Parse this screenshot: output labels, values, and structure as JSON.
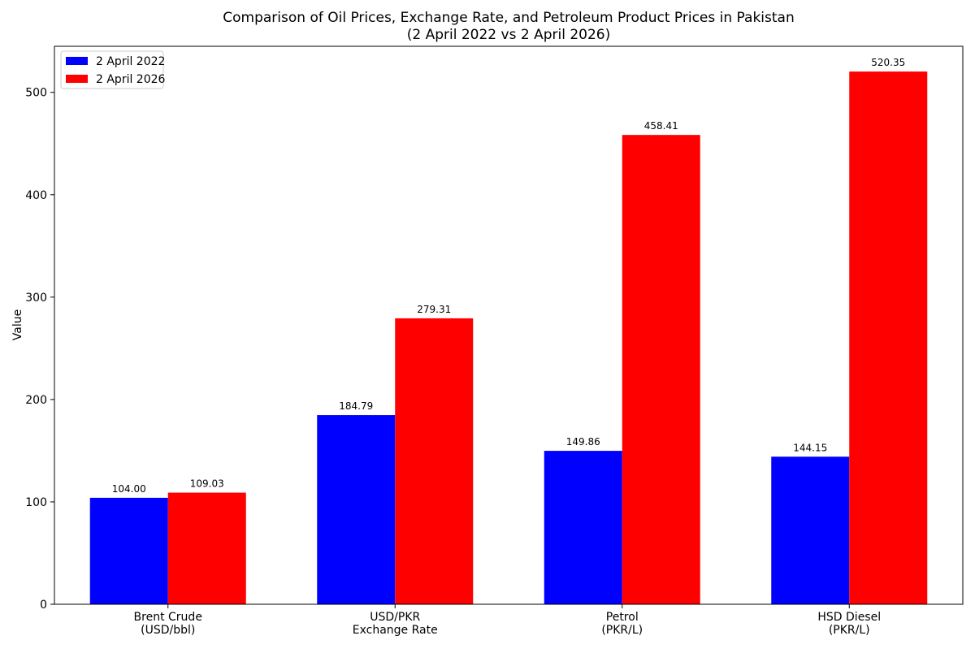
{
  "chart_data": {
    "type": "bar",
    "title": "Comparison of Oil Prices, Exchange Rate, and Petroleum Product Prices in Pakistan",
    "subtitle": "(2 April 2022 vs 2 April 2026)",
    "xlabel": "",
    "ylabel": "Value",
    "ylim": [
      0,
      545
    ],
    "yticks": [
      0,
      100,
      200,
      300,
      400,
      500
    ],
    "grid": false,
    "legend_position": "top-left",
    "categories": [
      [
        "Brent Crude",
        "(USD/bbl)"
      ],
      [
        "USD/PKR",
        "Exchange Rate"
      ],
      [
        "Petrol",
        "(PKR/L)"
      ],
      [
        "HSD Diesel",
        "(PKR/L)"
      ]
    ],
    "series": [
      {
        "name": "2 April 2022",
        "color": "#0000ff",
        "values": [
          104.0,
          184.79,
          149.86,
          144.15
        ],
        "labels": [
          "104.00",
          "184.79",
          "149.86",
          "144.15"
        ]
      },
      {
        "name": "2 April 2026",
        "color": "#ff0000",
        "values": [
          109.03,
          279.31,
          458.41,
          520.35
        ],
        "labels": [
          "109.03",
          "279.31",
          "458.41",
          "520.35"
        ]
      }
    ]
  }
}
